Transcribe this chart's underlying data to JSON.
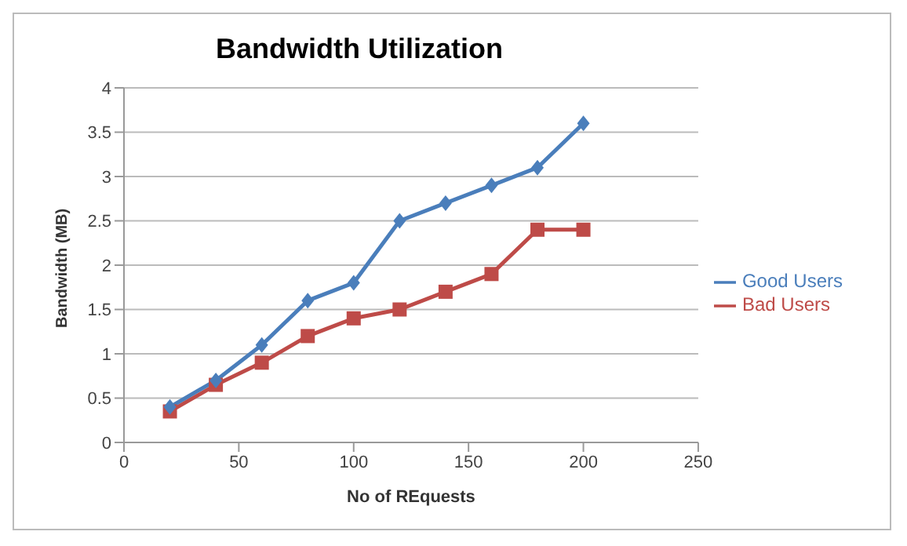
{
  "chart_data": {
    "type": "line",
    "title": "Bandwidth Utilization",
    "xlabel": "No of REquests",
    "ylabel": "Bandwidth (MB)",
    "x": [
      20,
      40,
      60,
      80,
      100,
      120,
      140,
      160,
      180,
      200
    ],
    "series": [
      {
        "name": "Good Users",
        "color": "#4a7ebb",
        "marker": "diamond",
        "values": [
          0.4,
          0.7,
          1.1,
          1.6,
          1.8,
          2.5,
          2.7,
          2.9,
          3.1,
          3.6
        ]
      },
      {
        "name": "Bad Users",
        "color": "#be4b48",
        "marker": "square",
        "values": [
          0.35,
          0.65,
          0.9,
          1.2,
          1.4,
          1.5,
          1.7,
          1.9,
          2.4,
          2.4
        ]
      }
    ],
    "xlim": [
      0,
      250
    ],
    "xticks": [
      0,
      50,
      100,
      150,
      200,
      250
    ],
    "ylim": [
      0,
      4
    ],
    "yticks": [
      0,
      0.5,
      1,
      1.5,
      2,
      2.5,
      3,
      3.5,
      4
    ],
    "grid": "y",
    "legend": "right"
  }
}
